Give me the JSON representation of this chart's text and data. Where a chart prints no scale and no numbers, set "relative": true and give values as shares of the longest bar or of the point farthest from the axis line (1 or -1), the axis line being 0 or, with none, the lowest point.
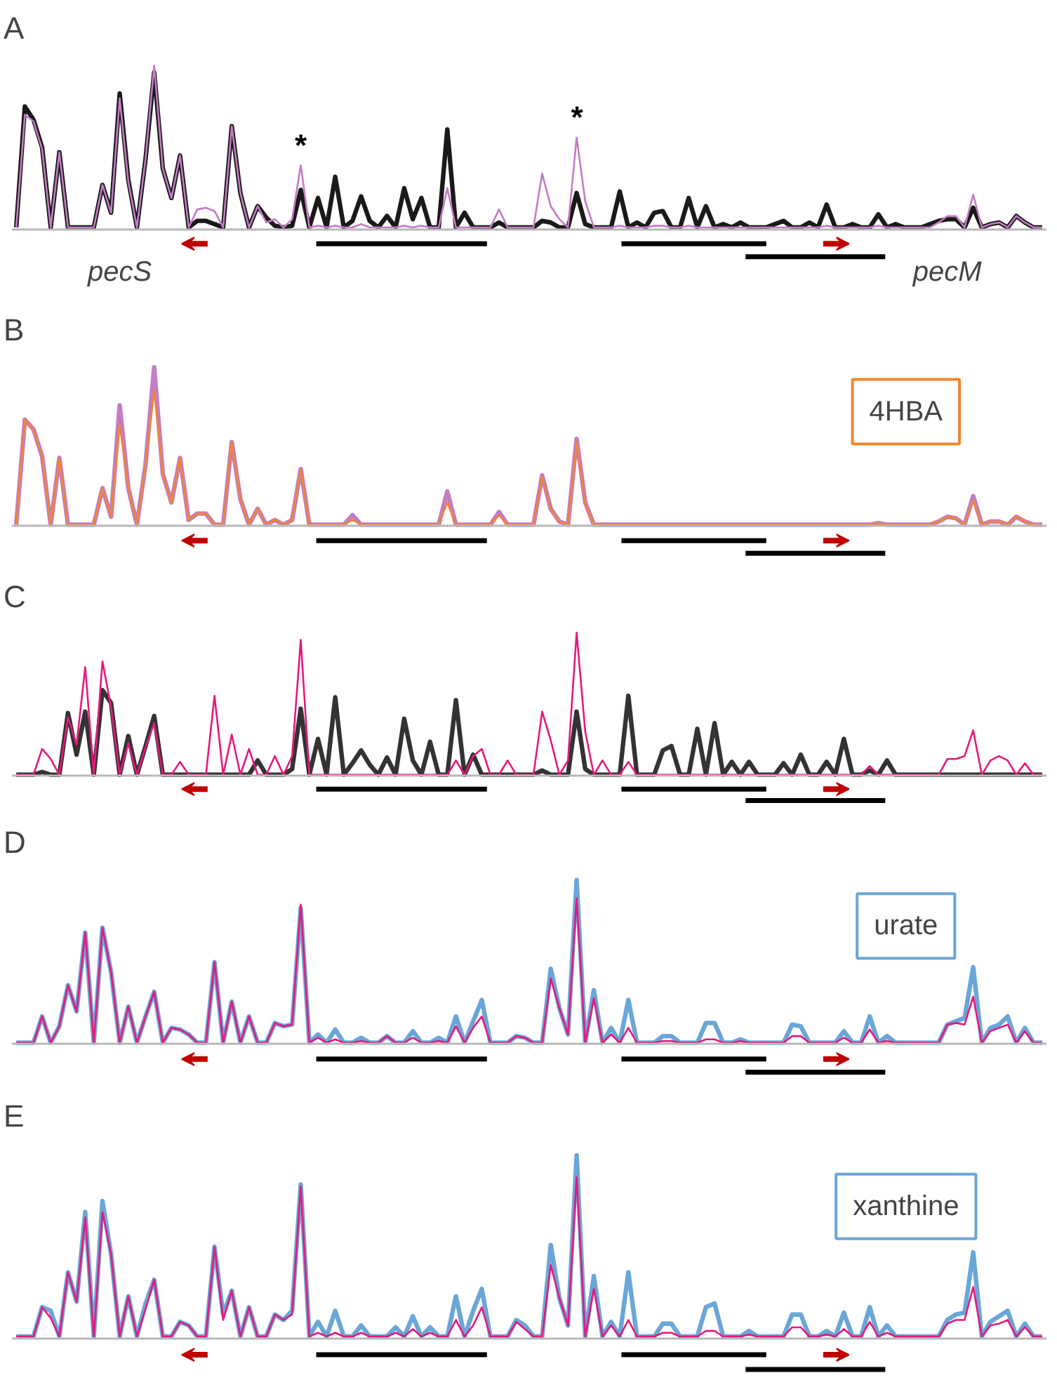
{
  "chart_data": [
    {
      "type": "line",
      "title": "A",
      "relative": true,
      "categories": [
        null,
        null,
        null,
        null,
        null,
        null,
        null,
        null,
        null,
        null,
        null,
        null,
        null,
        null,
        null,
        null,
        null,
        null,
        null,
        null,
        null,
        null,
        null,
        null,
        null,
        null,
        null,
        null,
        null,
        null,
        null,
        null,
        null,
        null,
        null,
        null,
        null,
        null,
        null,
        null,
        null,
        null,
        null,
        null,
        null,
        null,
        null,
        null,
        null,
        null,
        null,
        null,
        null,
        null,
        null,
        null,
        null,
        null,
        null,
        null,
        null,
        null,
        null,
        null,
        null,
        null,
        null,
        null,
        null,
        null,
        null,
        null,
        null,
        null,
        null,
        null,
        null,
        null,
        null,
        null,
        null,
        null,
        null,
        null,
        null,
        null,
        null,
        null,
        null,
        null,
        null,
        null,
        null,
        null,
        null,
        null,
        null,
        null,
        null,
        null,
        null,
        null,
        null,
        null,
        null,
        null,
        null,
        null,
        null,
        null,
        null,
        null,
        null,
        null,
        null,
        null,
        null,
        null,
        null,
        null
      ],
      "series": [
        {
          "color": "#1a1a1a",
          "values": [
            0.01,
            0.75,
            0.67,
            0.5,
            0.01,
            0.47,
            0.01,
            0.01,
            0.01,
            0.01,
            0.27,
            0.1,
            0.83,
            0.3,
            0.01,
            0.43,
            0.96,
            0.37,
            0.19,
            0.45,
            0.01,
            0.05,
            0.05,
            0.03,
            0.01,
            0.63,
            0.22,
            0.01,
            0.14,
            0.07,
            0.02,
            0.01,
            0.02,
            0.24,
            0.01,
            0.19,
            0.01,
            0.32,
            0.01,
            0.05,
            0.2,
            0.05,
            0.01,
            0.08,
            0.01,
            0.25,
            0.06,
            0.19,
            0.01,
            0.01,
            0.61,
            0.01,
            0.1,
            0.01,
            0.01,
            0.01,
            0.04,
            0.01,
            0.01,
            0.01,
            0.01,
            0.05,
            0.04,
            0.01,
            0.01,
            0.22,
            0.03,
            0.01,
            0.01,
            0.01,
            0.23,
            0.01,
            0.04,
            0.01,
            0.1,
            0.11,
            0.01,
            0.01,
            0.19,
            0.01,
            0.14,
            0.01,
            0.03,
            0.01,
            0.04,
            0.01,
            0.01,
            0.01,
            0.03,
            0.05,
            0.01,
            0.01,
            0.04,
            0.01,
            0.15,
            0.01,
            0.01,
            0.03,
            0.01,
            0.01,
            0.09,
            0.01,
            0.03,
            0.01,
            0.01,
            0.01,
            0.03,
            0.05,
            0.06,
            0.06,
            0.01,
            0.13,
            0.01,
            0.03,
            0.04,
            0.01,
            0.08,
            0.04,
            0.01,
            0.01
          ]
        },
        {
          "color": "#c47cc4",
          "values": [
            0.01,
            0.7,
            0.66,
            0.49,
            0.01,
            0.47,
            0.01,
            0.01,
            0.01,
            0.01,
            0.27,
            0.1,
            0.8,
            0.29,
            0.01,
            0.43,
            1,
            0.37,
            0.19,
            0.45,
            0.01,
            0.12,
            0.13,
            0.11,
            0.01,
            0.63,
            0.22,
            0.01,
            0.14,
            0.04,
            0.06,
            0.01,
            0.06,
            0.39,
            0.01,
            0.02,
            0.01,
            0.02,
            0.01,
            0.01,
            0.03,
            0.01,
            0.01,
            0.01,
            0.01,
            0.02,
            0.01,
            0.02,
            0.01,
            0.01,
            0.25,
            0.01,
            0.01,
            0.01,
            0.01,
            0.01,
            0.12,
            0.01,
            0.01,
            0.01,
            0.01,
            0.34,
            0.14,
            0.06,
            0.01,
            0.56,
            0.17,
            0.01,
            0.01,
            0.01,
            0.02,
            0.01,
            0.01,
            0.01,
            0.02,
            0.02,
            0.01,
            0.01,
            0.02,
            0.01,
            0.01,
            0.01,
            0.01,
            0.01,
            0.01,
            0.01,
            0.01,
            0.01,
            0.01,
            0.01,
            0.01,
            0.01,
            0.01,
            0.01,
            0.02,
            0.01,
            0.01,
            0.01,
            0.01,
            0.01,
            0.02,
            0.01,
            0.01,
            0.01,
            0.01,
            0.01,
            0.01,
            0.04,
            0.08,
            0.08,
            0.01,
            0.21,
            0.01,
            0.03,
            0.04,
            0.01,
            0.08,
            0.04,
            0.01,
            0.01
          ]
        }
      ],
      "annotations": [
        {
          "text": "*",
          "y": 0.39
        },
        {
          "text": "*",
          "y": 0.56
        },
        "pecS",
        "pecM"
      ]
    },
    {
      "type": "line",
      "title": "B",
      "relative": true,
      "legend": "top right",
      "categories": [
        null,
        null,
        null,
        null,
        null,
        null,
        null,
        null,
        null,
        null,
        null,
        null,
        null,
        null,
        null,
        null,
        null,
        null,
        null,
        null,
        null,
        null,
        null,
        null,
        null,
        null,
        null,
        null,
        null,
        null,
        null,
        null,
        null,
        null,
        null,
        null,
        null,
        null,
        null,
        null,
        null,
        null,
        null,
        null,
        null,
        null,
        null,
        null,
        null,
        null,
        null,
        null,
        null,
        null,
        null,
        null,
        null,
        null,
        null,
        null,
        null,
        null,
        null,
        null,
        null,
        null,
        null,
        null,
        null,
        null,
        null,
        null,
        null,
        null,
        null,
        null,
        null,
        null,
        null,
        null,
        null,
        null,
        null,
        null,
        null,
        null,
        null,
        null,
        null,
        null,
        null,
        null,
        null,
        null,
        null,
        null,
        null,
        null,
        null,
        null,
        null,
        null,
        null,
        null,
        null,
        null,
        null,
        null,
        null,
        null,
        null,
        null,
        null,
        null,
        null,
        null,
        null,
        null,
        null,
        null
      ],
      "series": [
        {
          "color": "#c47cc4",
          "values": [
            0.01,
            0.67,
            0.61,
            0.44,
            0.01,
            0.43,
            0.01,
            0.01,
            0.01,
            0.01,
            0.24,
            0.06,
            0.76,
            0.24,
            0.01,
            0.39,
            1,
            0.33,
            0.15,
            0.43,
            0.04,
            0.08,
            0.08,
            0.01,
            0.01,
            0.53,
            0.17,
            0.01,
            0.11,
            0.01,
            0.04,
            0.01,
            0.04,
            0.36,
            0.01,
            0.01,
            0.01,
            0.01,
            0.01,
            0.07,
            0.01,
            0.01,
            0.01,
            0.01,
            0.01,
            0.01,
            0.01,
            0.01,
            0.01,
            0.01,
            0.22,
            0.01,
            0.01,
            0.01,
            0.01,
            0.01,
            0.09,
            0.01,
            0.01,
            0.01,
            0.01,
            0.32,
            0.11,
            0.03,
            0.01,
            0.55,
            0.15,
            0.01,
            0.01,
            0.01,
            0.01,
            0.01,
            0.01,
            0.01,
            0.01,
            0.01,
            0.01,
            0.01,
            0.01,
            0.01,
            0.01,
            0.01,
            0.01,
            0.01,
            0.01,
            0.01,
            0.01,
            0.01,
            0.01,
            0.01,
            0.01,
            0.01,
            0.01,
            0.01,
            0.01,
            0.01,
            0.01,
            0.01,
            0.01,
            0.01,
            0.02,
            0.01,
            0.01,
            0.01,
            0.01,
            0.01,
            0.01,
            0.03,
            0.06,
            0.05,
            0.01,
            0.19,
            0.01,
            0.03,
            0.03,
            0.01,
            0.06,
            0.03,
            0.01,
            0.01
          ]
        },
        {
          "name": "4HBA",
          "color": "#f0862f",
          "values": [
            0.01,
            0.67,
            0.61,
            0.44,
            0.01,
            0.43,
            0.01,
            0.01,
            0.01,
            0.01,
            0.24,
            0.06,
            0.64,
            0.24,
            0.01,
            0.39,
            0.85,
            0.33,
            0.15,
            0.43,
            0.04,
            0.08,
            0.08,
            0.01,
            0.01,
            0.53,
            0.17,
            0.01,
            0.11,
            0.01,
            0.04,
            0.01,
            0.04,
            0.36,
            0.01,
            0.01,
            0.01,
            0.01,
            0.01,
            0.04,
            0.01,
            0.01,
            0.01,
            0.01,
            0.01,
            0.01,
            0.01,
            0.01,
            0.01,
            0.01,
            0.15,
            0.01,
            0.01,
            0.01,
            0.01,
            0.01,
            0.07,
            0.01,
            0.01,
            0.01,
            0.01,
            0.31,
            0.11,
            0.03,
            0.01,
            0.53,
            0.14,
            0.01,
            0.01,
            0.01,
            0.01,
            0.01,
            0.01,
            0.01,
            0.01,
            0.01,
            0.01,
            0.01,
            0.01,
            0.01,
            0.01,
            0.01,
            0.01,
            0.01,
            0.01,
            0.01,
            0.01,
            0.01,
            0.01,
            0.01,
            0.01,
            0.01,
            0.01,
            0.01,
            0.01,
            0.01,
            0.01,
            0.01,
            0.01,
            0.01,
            0.02,
            0.01,
            0.01,
            0.01,
            0.01,
            0.01,
            0.01,
            0.03,
            0.06,
            0.05,
            0.01,
            0.16,
            0.01,
            0.03,
            0.03,
            0.01,
            0.06,
            0.03,
            0.01,
            0.01
          ]
        }
      ]
    },
    {
      "type": "line",
      "title": "C",
      "relative": true,
      "categories": [
        null,
        null,
        null,
        null,
        null,
        null,
        null,
        null,
        null,
        null,
        null,
        null,
        null,
        null,
        null,
        null,
        null,
        null,
        null,
        null,
        null,
        null,
        null,
        null,
        null,
        null,
        null,
        null,
        null,
        null,
        null,
        null,
        null,
        null,
        null,
        null,
        null,
        null,
        null,
        null,
        null,
        null,
        null,
        null,
        null,
        null,
        null,
        null,
        null,
        null,
        null,
        null,
        null,
        null,
        null,
        null,
        null,
        null,
        null,
        null,
        null,
        null,
        null,
        null,
        null,
        null,
        null,
        null,
        null,
        null,
        null,
        null,
        null,
        null,
        null,
        null,
        null,
        null,
        null,
        null,
        null,
        null,
        null,
        null,
        null,
        null,
        null,
        null,
        null,
        null,
        null,
        null,
        null,
        null,
        null,
        null,
        null,
        null,
        null,
        null,
        null,
        null,
        null,
        null,
        null,
        null,
        null,
        null,
        null,
        null,
        null,
        null,
        null,
        null,
        null,
        null,
        null,
        null,
        null,
        null
      ],
      "series": [
        {
          "color": "#333333",
          "values": [
            0.01,
            0.01,
            0.01,
            0.03,
            0.01,
            0.01,
            0.44,
            0.15,
            0.45,
            0.01,
            0.6,
            0.51,
            0.01,
            0.28,
            0.01,
            0.21,
            0.42,
            0.01,
            0.01,
            0.01,
            0.01,
            0.01,
            0.01,
            0.01,
            0.01,
            0.01,
            0.01,
            0.01,
            0.11,
            0.01,
            0.01,
            0.01,
            0.05,
            0.47,
            0.01,
            0.26,
            0.01,
            0.55,
            0.01,
            0.09,
            0.18,
            0.08,
            0.01,
            0.13,
            0.01,
            0.4,
            0.11,
            0.01,
            0.24,
            0.01,
            0.01,
            0.53,
            0.01,
            0.15,
            0.01,
            0.01,
            0.01,
            0.01,
            0.01,
            0.01,
            0.01,
            0.04,
            0.01,
            0.01,
            0.01,
            0.45,
            0.05,
            0.01,
            0.01,
            0.01,
            0.01,
            0.56,
            0.01,
            0.01,
            0.01,
            0.18,
            0.21,
            0.01,
            0.01,
            0.33,
            0.01,
            0.37,
            0.01,
            0.1,
            0.01,
            0.1,
            0.01,
            0.01,
            0.01,
            0.09,
            0.01,
            0.15,
            0.01,
            0.01,
            0.1,
            0.01,
            0.26,
            0.01,
            0.01,
            0.04,
            0.01,
            0.11,
            0.01,
            0.01,
            0.01,
            0.01,
            0.01,
            0.01,
            0.01,
            0.01,
            0.01,
            0.01,
            0.01,
            0.01,
            0.01,
            0.01,
            0.01,
            0.01,
            0.01,
            0.01
          ]
        },
        {
          "color": "#e6197d",
          "values": [
            0.01,
            0.01,
            0.01,
            0.19,
            0.12,
            0.01,
            0.41,
            0.22,
            0.76,
            0.01,
            0.8,
            0.48,
            0.01,
            0.23,
            0.01,
            0.2,
            0.37,
            0.01,
            0.01,
            0.1,
            0.01,
            0.01,
            0.01,
            0.56,
            0.01,
            0.29,
            0.01,
            0.19,
            0.01,
            0.01,
            0.14,
            0.01,
            0.14,
            0.95,
            0.01,
            0.01,
            0.01,
            0.01,
            0.01,
            0.01,
            0.01,
            0.01,
            0.01,
            0.01,
            0.01,
            0.01,
            0.01,
            0.01,
            0.01,
            0.01,
            0.01,
            0.11,
            0.01,
            0.14,
            0.19,
            0.01,
            0.01,
            0.11,
            0.01,
            0.01,
            0.01,
            0.45,
            0.25,
            0.01,
            0.11,
            1,
            0.31,
            0.01,
            0.11,
            0.01,
            0.01,
            0.1,
            0.01,
            0.01,
            0.01,
            0.01,
            0.01,
            0.01,
            0.01,
            0.01,
            0.01,
            0.01,
            0.01,
            0.01,
            0.01,
            0.01,
            0.01,
            0.01,
            0.01,
            0.01,
            0.01,
            0.01,
            0.01,
            0.01,
            0.01,
            0.01,
            0.01,
            0.01,
            0.01,
            0.07,
            0.01,
            0.01,
            0.01,
            0.01,
            0.01,
            0.01,
            0.01,
            0.01,
            0.12,
            0.12,
            0.14,
            0.32,
            0.01,
            0.11,
            0.14,
            0.11,
            0.01,
            0.09,
            0.01,
            0.01
          ]
        }
      ]
    },
    {
      "type": "line",
      "title": "D",
      "relative": true,
      "legend": "top right",
      "categories": [
        null,
        null,
        null,
        null,
        null,
        null,
        null,
        null,
        null,
        null,
        null,
        null,
        null,
        null,
        null,
        null,
        null,
        null,
        null,
        null,
        null,
        null,
        null,
        null,
        null,
        null,
        null,
        null,
        null,
        null,
        null,
        null,
        null,
        null,
        null,
        null,
        null,
        null,
        null,
        null,
        null,
        null,
        null,
        null,
        null,
        null,
        null,
        null,
        null,
        null,
        null,
        null,
        null,
        null,
        null,
        null,
        null,
        null,
        null,
        null,
        null,
        null,
        null,
        null,
        null,
        null,
        null,
        null,
        null,
        null,
        null,
        null,
        null,
        null,
        null,
        null,
        null,
        null,
        null,
        null,
        null,
        null,
        null,
        null,
        null,
        null,
        null,
        null,
        null,
        null,
        null,
        null,
        null,
        null,
        null,
        null,
        null,
        null,
        null,
        null,
        null,
        null,
        null,
        null,
        null,
        null,
        null,
        null,
        null,
        null,
        null,
        null,
        null,
        null,
        null,
        null,
        null,
        null,
        null,
        null
      ],
      "series": [
        {
          "name": "urate",
          "color": "#6aa6d8",
          "values": [
            0.01,
            0.01,
            0.01,
            0.17,
            0.01,
            0.11,
            0.36,
            0.2,
            0.68,
            0.01,
            0.71,
            0.44,
            0.01,
            0.23,
            0.01,
            0.17,
            0.32,
            0.01,
            0.1,
            0.09,
            0.06,
            0.01,
            0.01,
            0.5,
            0.01,
            0.26,
            0.01,
            0.17,
            0.01,
            0.01,
            0.13,
            0.11,
            0.12,
            0.83,
            0.01,
            0.06,
            0.01,
            0.09,
            0.01,
            0.01,
            0.04,
            0.01,
            0.01,
            0.05,
            0.01,
            0.01,
            0.08,
            0.01,
            0.01,
            0.04,
            0.01,
            0.17,
            0.01,
            0.14,
            0.27,
            0.01,
            0.01,
            0.01,
            0.05,
            0.04,
            0.01,
            0.01,
            0.46,
            0.22,
            0.06,
            1,
            0.01,
            0.33,
            0.01,
            0.1,
            0.01,
            0.27,
            0.01,
            0.01,
            0.01,
            0.05,
            0.05,
            0.01,
            0.01,
            0.01,
            0.13,
            0.13,
            0.01,
            0.01,
            0.03,
            0.01,
            0.01,
            0.01,
            0.01,
            0.01,
            0.12,
            0.11,
            0.01,
            0.01,
            0.01,
            0.01,
            0.08,
            0.01,
            0.01,
            0.17,
            0.01,
            0.05,
            0.01,
            0.01,
            0.01,
            0.01,
            0.01,
            0.01,
            0.12,
            0.14,
            0.16,
            0.47,
            0.01,
            0.1,
            0.12,
            0.17,
            0.01,
            0.1,
            0.01,
            0.01
          ]
        },
        {
          "color": "#e6197d",
          "values": [
            0.01,
            0.01,
            0.01,
            0.17,
            0.01,
            0.11,
            0.36,
            0.2,
            0.68,
            0.01,
            0.71,
            0.44,
            0.01,
            0.23,
            0.01,
            0.17,
            0.32,
            0.01,
            0.1,
            0.09,
            0.06,
            0.01,
            0.01,
            0.5,
            0.01,
            0.26,
            0.01,
            0.17,
            0.01,
            0.01,
            0.13,
            0.11,
            0.12,
            0.85,
            0.01,
            0.04,
            0.01,
            0.03,
            0.01,
            0.01,
            0.02,
            0.01,
            0.01,
            0.05,
            0.01,
            0.01,
            0.04,
            0.01,
            0.01,
            0.02,
            0.01,
            0.11,
            0.01,
            0.1,
            0.17,
            0.01,
            0.01,
            0.01,
            0.05,
            0.04,
            0.01,
            0.01,
            0.4,
            0.22,
            0.06,
            0.89,
            0.01,
            0.28,
            0.01,
            0.06,
            0.01,
            0.1,
            0.01,
            0.01,
            0.01,
            0.02,
            0.02,
            0.01,
            0.01,
            0.01,
            0.03,
            0.03,
            0.01,
            0.01,
            0.02,
            0.01,
            0.01,
            0.01,
            0.01,
            0.01,
            0.05,
            0.05,
            0.01,
            0.01,
            0.01,
            0.01,
            0.04,
            0.01,
            0.01,
            0.09,
            0.01,
            0.02,
            0.01,
            0.01,
            0.01,
            0.01,
            0.01,
            0.01,
            0.12,
            0.13,
            0.12,
            0.29,
            0.01,
            0.08,
            0.1,
            0.12,
            0.01,
            0.08,
            0.01,
            0.01
          ]
        }
      ]
    },
    {
      "type": "line",
      "title": "E",
      "relative": true,
      "legend": "top right",
      "categories": [
        null,
        null,
        null,
        null,
        null,
        null,
        null,
        null,
        null,
        null,
        null,
        null,
        null,
        null,
        null,
        null,
        null,
        null,
        null,
        null,
        null,
        null,
        null,
        null,
        null,
        null,
        null,
        null,
        null,
        null,
        null,
        null,
        null,
        null,
        null,
        null,
        null,
        null,
        null,
        null,
        null,
        null,
        null,
        null,
        null,
        null,
        null,
        null,
        null,
        null,
        null,
        null,
        null,
        null,
        null,
        null,
        null,
        null,
        null,
        null,
        null,
        null,
        null,
        null,
        null,
        null,
        null,
        null,
        null,
        null,
        null,
        null,
        null,
        null,
        null,
        null,
        null,
        null,
        null,
        null,
        null,
        null,
        null,
        null,
        null,
        null,
        null,
        null,
        null,
        null,
        null,
        null,
        null,
        null,
        null,
        null,
        null,
        null,
        null,
        null,
        null,
        null,
        null,
        null,
        null,
        null,
        null,
        null,
        null,
        null,
        null,
        null,
        null,
        null,
        null,
        null,
        null,
        null,
        null,
        null
      ],
      "series": [
        {
          "name": "xanthine",
          "color": "#6aa6d8",
          "values": [
            0.01,
            0.01,
            0.01,
            0.17,
            0.15,
            0.01,
            0.36,
            0.2,
            0.69,
            0.01,
            0.75,
            0.46,
            0.01,
            0.23,
            0.01,
            0.19,
            0.32,
            0.01,
            0.01,
            0.09,
            0.07,
            0.01,
            0.01,
            0.5,
            0.13,
            0.26,
            0.01,
            0.17,
            0.01,
            0.01,
            0.13,
            0.1,
            0.15,
            0.84,
            0.01,
            0.09,
            0.01,
            0.15,
            0.01,
            0.01,
            0.07,
            0.01,
            0.01,
            0.01,
            0.06,
            0.01,
            0.12,
            0.01,
            0.06,
            0.01,
            0.01,
            0.23,
            0.01,
            0.15,
            0.27,
            0.01,
            0.01,
            0.01,
            0.1,
            0.07,
            0.01,
            0.01,
            0.51,
            0.22,
            0.07,
            1,
            0.01,
            0.34,
            0.01,
            0.09,
            0.01,
            0.36,
            0.01,
            0.01,
            0.01,
            0.08,
            0.08,
            0.01,
            0.01,
            0.01,
            0.17,
            0.19,
            0.01,
            0.01,
            0.01,
            0.04,
            0.01,
            0.01,
            0.01,
            0.01,
            0.13,
            0.13,
            0.01,
            0.01,
            0.04,
            0.01,
            0.14,
            0.01,
            0.01,
            0.17,
            0.01,
            0.07,
            0.01,
            0.01,
            0.01,
            0.01,
            0.01,
            0.01,
            0.1,
            0.13,
            0.14,
            0.47,
            0.01,
            0.09,
            0.12,
            0.15,
            0.01,
            0.08,
            0.01,
            0.01
          ]
        },
        {
          "color": "#e6197d",
          "values": [
            0.01,
            0.01,
            0.01,
            0.17,
            0.11,
            0.01,
            0.36,
            0.2,
            0.66,
            0.01,
            0.69,
            0.46,
            0.01,
            0.23,
            0.01,
            0.16,
            0.32,
            0.01,
            0.01,
            0.09,
            0.07,
            0.01,
            0.01,
            0.5,
            0.1,
            0.26,
            0.01,
            0.17,
            0.01,
            0.01,
            0.13,
            0.1,
            0.13,
            0.83,
            0.01,
            0.03,
            0.01,
            0.03,
            0.01,
            0.01,
            0.03,
            0.01,
            0.01,
            0.01,
            0.03,
            0.01,
            0.05,
            0.01,
            0.03,
            0.01,
            0.01,
            0.1,
            0.01,
            0.07,
            0.17,
            0.01,
            0.01,
            0.01,
            0.09,
            0.05,
            0.01,
            0.01,
            0.4,
            0.22,
            0.07,
            0.88,
            0.01,
            0.27,
            0.01,
            0.07,
            0.01,
            0.1,
            0.01,
            0.01,
            0.01,
            0.03,
            0.03,
            0.01,
            0.01,
            0.01,
            0.04,
            0.04,
            0.01,
            0.01,
            0.01,
            0.02,
            0.01,
            0.01,
            0.01,
            0.01,
            0.06,
            0.06,
            0.01,
            0.01,
            0.02,
            0.01,
            0.05,
            0.01,
            0.01,
            0.09,
            0.01,
            0.03,
            0.01,
            0.01,
            0.01,
            0.01,
            0.01,
            0.01,
            0.08,
            0.1,
            0.1,
            0.28,
            0.01,
            0.07,
            0.08,
            0.1,
            0.01,
            0.06,
            0.01,
            0.01
          ]
        }
      ]
    }
  ]
}
